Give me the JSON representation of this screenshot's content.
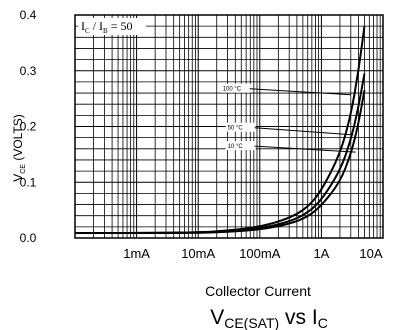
{
  "chart_data": {
    "type": "line",
    "title": "V_CE(SAT) vs I_C",
    "title_parts": {
      "main": "V",
      "main_sub": "CE(SAT)",
      "mid": " vs ",
      "var": "I",
      "var_sub": "C"
    },
    "xlabel": "Collector Current",
    "ylabel": "V_CE (VOLTS)",
    "ylabel_parts": {
      "v": "V",
      "sub": "CE",
      "rest": " (VOLTS)"
    },
    "condition": "I_C / I_B = 50",
    "condition_parts": {
      "a": "I",
      "a_sub": "C",
      "slash": " / ",
      "b": "I",
      "b_sub": "B",
      "eq": " = 50"
    },
    "x_scale": "log",
    "xlim": [
      0.0001,
      10
    ],
    "ylim": [
      0,
      0.4
    ],
    "x_ticks": [
      {
        "value": 0.001,
        "label": "1mA"
      },
      {
        "value": 0.01,
        "label": "10mA"
      },
      {
        "value": 0.1,
        "label": "100mA"
      },
      {
        "value": 1,
        "label": "1A"
      },
      {
        "value": 10,
        "label": "10A"
      }
    ],
    "y_ticks": [
      {
        "value": 0.0,
        "label": "0.0"
      },
      {
        "value": 0.1,
        "label": "0.1"
      },
      {
        "value": 0.2,
        "label": "0.2"
      },
      {
        "value": 0.3,
        "label": "0.3"
      },
      {
        "value": 0.4,
        "label": "0.4"
      }
    ],
    "grid": true,
    "series": [
      {
        "name": "100 °C",
        "x": [
          0.0001,
          0.001,
          0.01,
          0.03,
          0.1,
          0.3,
          0.6,
          1,
          2,
          3,
          4,
          5
        ],
        "y": [
          0.009,
          0.009,
          0.01,
          0.013,
          0.02,
          0.035,
          0.055,
          0.085,
          0.15,
          0.22,
          0.3,
          0.38
        ]
      },
      {
        "name": "50 °C",
        "x": [
          0.0001,
          0.001,
          0.01,
          0.03,
          0.1,
          0.3,
          0.6,
          1,
          2,
          3,
          4,
          5
        ],
        "y": [
          0.009,
          0.009,
          0.01,
          0.012,
          0.017,
          0.029,
          0.045,
          0.068,
          0.12,
          0.175,
          0.235,
          0.295
        ]
      },
      {
        "name": "10 °C",
        "x": [
          0.0001,
          0.001,
          0.01,
          0.03,
          0.1,
          0.3,
          0.6,
          1,
          2,
          3,
          4,
          5
        ],
        "y": [
          0.009,
          0.009,
          0.009,
          0.011,
          0.015,
          0.025,
          0.038,
          0.058,
          0.1,
          0.15,
          0.205,
          0.265
        ]
      }
    ],
    "annotations": [
      {
        "text": "100 °C",
        "x": 0.025,
        "y": 0.266,
        "tx": 3.0,
        "ty": 0.257
      },
      {
        "text": "50 °C",
        "x": 0.03,
        "y": 0.196,
        "tx": 3.3,
        "ty": 0.185
      },
      {
        "text": "10 °C",
        "x": 0.03,
        "y": 0.163,
        "tx": 3.6,
        "ty": 0.154
      }
    ]
  }
}
